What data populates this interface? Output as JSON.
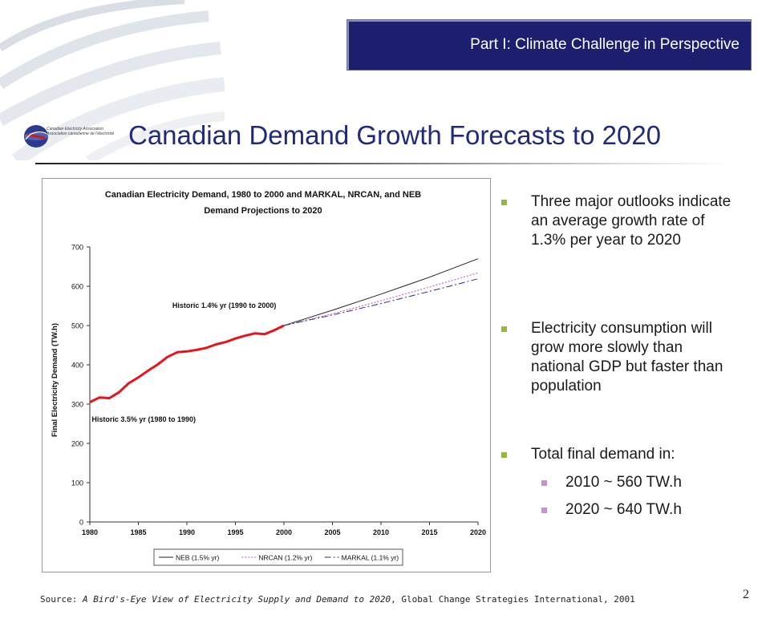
{
  "header": {
    "section_title": "Part I: Climate Challenge in Perspective"
  },
  "logo": {
    "line1": "Canadian Electricity Association",
    "line2": "Association canadienne de l'électricité"
  },
  "slide": {
    "title": "Canadian Demand Growth Forecasts to 2020"
  },
  "bullets": [
    {
      "text": "Three major outlooks indicate an average growth rate of 1.3% per year to 2020"
    },
    {
      "text": "Electricity consumption will grow more slowly than national GDP but faster than population"
    },
    {
      "text": "Total final demand in:"
    }
  ],
  "sub_bullets": [
    {
      "text": "2010 ~ 560 TW.h"
    },
    {
      "text": "2020 ~ 640 TW.h"
    }
  ],
  "footer": {
    "source_prefix": "Source: ",
    "source_title": "A Bird's-Eye View of Electricity Supply and Demand to 2020",
    "source_suffix": ", Global Change Strategies International, 2001",
    "page_number": "2"
  },
  "colors": {
    "banner": "#1b1f6e",
    "title": "#1f2a7a",
    "bullet_square": "#8fbf2f",
    "sub_bullet_square": "#c98fd6",
    "historic": "#e8141b",
    "neb": "#222222",
    "nrcan": "#d070d0",
    "markal": "#2a2f7a"
  },
  "chart_data": {
    "type": "line",
    "title_line1": "Canadian Electricity Demand, 1980 to 2000 and MARKAL, NRCAN, and NEB",
    "title_line2": "Demand Projections to 2020",
    "ylabel": "Final Electricity Demand (TW.h)",
    "xlabel": "",
    "xlim": [
      1980,
      2020
    ],
    "ylim": [
      0,
      700
    ],
    "x_ticks": [
      "1980",
      "1985",
      "1990",
      "1995",
      "2000",
      "2005",
      "2010",
      "2015",
      "2020"
    ],
    "y_ticks": [
      "0",
      "100",
      "200",
      "300",
      "400",
      "500",
      "600",
      "700"
    ],
    "grid": false,
    "legend_position": "bottom",
    "annotations": [
      {
        "text": "Historic  1.4% yr (1990 to 2000)",
        "x": 1988.5,
        "y": 545
      },
      {
        "text": "Historic  3.5% yr (1980 to 1990)",
        "x": 1980.2,
        "y": 255
      }
    ],
    "series": [
      {
        "name": "Historic",
        "style": "solid-thick",
        "x": [
          1980,
          1981,
          1982,
          1983,
          1984,
          1985,
          1986,
          1987,
          1988,
          1989,
          1990,
          1991,
          1992,
          1993,
          1994,
          1995,
          1996,
          1997,
          1998,
          1999,
          2000
        ],
        "values": [
          305,
          317,
          315,
          330,
          353,
          368,
          385,
          401,
          420,
          432,
          434,
          438,
          443,
          452,
          458,
          467,
          474,
          480,
          478,
          488,
          500
        ]
      },
      {
        "name": "NEB (1.5% yr)",
        "style": "solid",
        "x": [
          2000,
          2005,
          2010,
          2015,
          2020
        ],
        "values": [
          500,
          539,
          580,
          623,
          670
        ]
      },
      {
        "name": "NRCAN (1.2% yr)",
        "style": "dotted",
        "x": [
          2000,
          2005,
          2010,
          2015,
          2020
        ],
        "values": [
          500,
          530,
          563,
          598,
          634
        ]
      },
      {
        "name": "MARKAL (1.1% yr)",
        "style": "dashdot",
        "x": [
          2000,
          2005,
          2010,
          2015,
          2020
        ],
        "values": [
          500,
          527,
          556,
          587,
          619
        ]
      }
    ]
  }
}
